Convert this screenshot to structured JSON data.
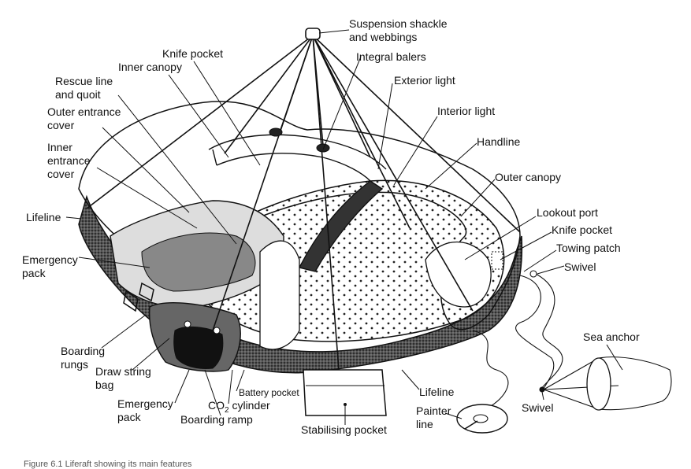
{
  "labels": {
    "suspension_shackle": "Suspension shackle\nand webbings",
    "knife_pocket_top": "Knife pocket",
    "integral_balers": "Integral balers",
    "inner_canopy": "Inner canopy",
    "exterior_light": "Exterior light",
    "rescue_line": "Rescue line\nand quoit",
    "interior_light": "Interior light",
    "outer_entrance_cover": "Outer entrance\ncover",
    "handline": "Handline",
    "inner_entrance_cover": "Inner\nentrance\ncover",
    "outer_canopy": "Outer canopy",
    "lifeline_left": "Lifeline",
    "lookout_port": "Lookout port",
    "knife_pocket_right": "Knife pocket",
    "towing_patch": "Towing patch",
    "emergency_pack_left": "Emergency\npack",
    "swivel_right": "Swivel",
    "sea_anchor": "Sea anchor",
    "boarding_rungs": "Boarding\nrungs",
    "draw_string_bag": "Draw string\nbag",
    "battery_pocket": "Battery pocket",
    "lifeline_bottom": "Lifeline",
    "emergency_pack_bottom": "Emergency\npack",
    "co2_prefix": "CO",
    "co2_sub": "2",
    "co2_suffix": " cylinder",
    "swivel_bottom": "Swivel",
    "painter_line": "Painter\nline",
    "boarding_ramp": "Boarding ramp",
    "stabilising_pocket": "Stabilising pocket"
  },
  "caption": "Figure 6.1 Liferaft showing its main features"
}
